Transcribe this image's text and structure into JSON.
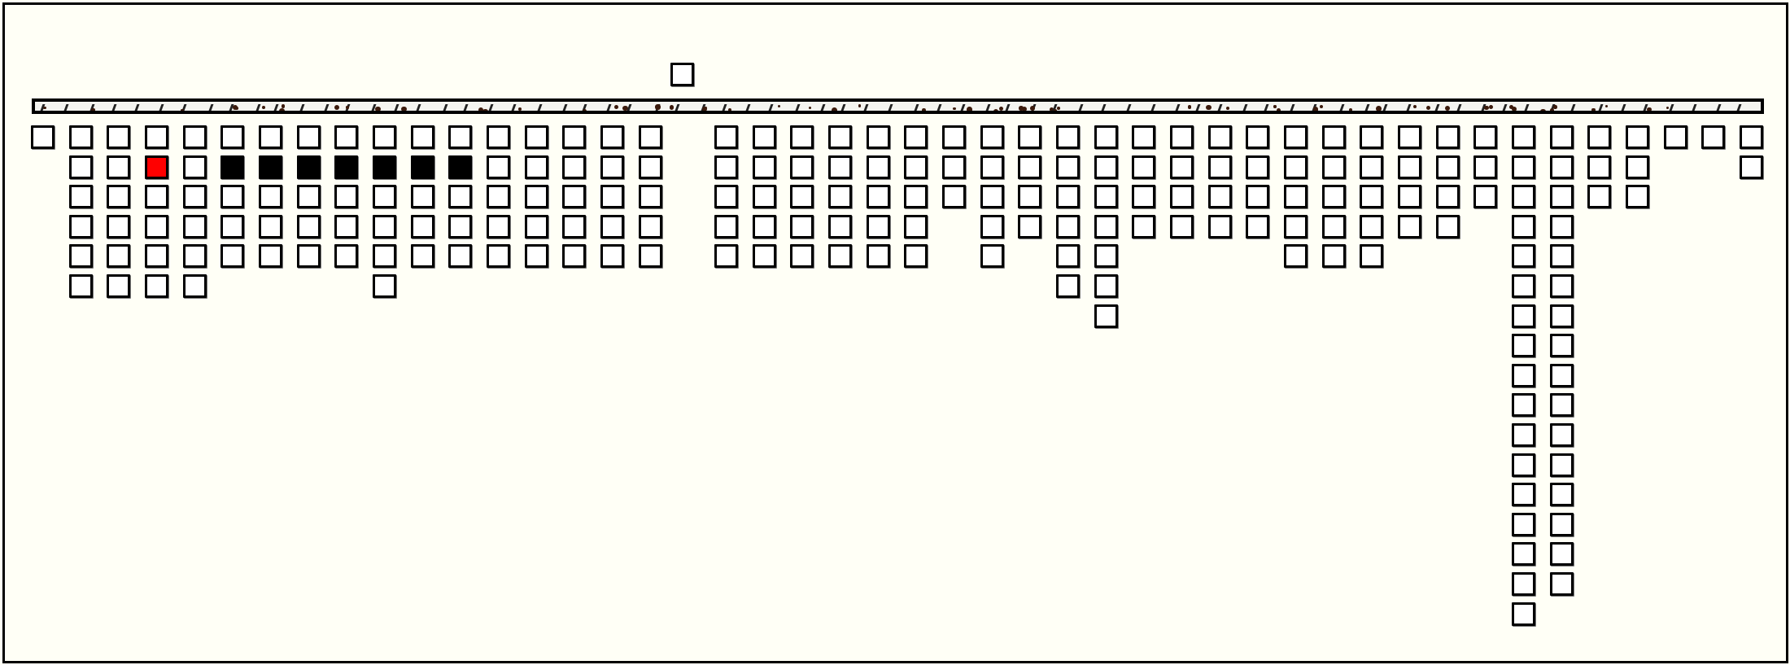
{
  "board": {
    "column_heights": [
      1,
      6,
      6,
      6,
      6,
      5,
      5,
      5,
      5,
      6,
      5,
      5,
      5,
      5,
      5,
      5,
      5,
      0,
      5,
      5,
      5,
      5,
      5,
      5,
      3,
      5,
      4,
      6,
      7,
      4,
      4,
      4,
      4,
      5,
      5,
      5,
      4,
      4,
      3,
      17,
      16,
      3,
      3,
      1,
      1,
      2
    ],
    "highlighted_cells": [
      {
        "col": 3,
        "row": 1,
        "state": "red"
      },
      {
        "col": 5,
        "row": 1,
        "state": "black"
      },
      {
        "col": 6,
        "row": 1,
        "state": "black"
      },
      {
        "col": 7,
        "row": 1,
        "state": "black"
      },
      {
        "col": 8,
        "row": 1,
        "state": "black"
      },
      {
        "col": 9,
        "row": 1,
        "state": "black"
      },
      {
        "col": 10,
        "row": 1,
        "state": "black"
      },
      {
        "col": 11,
        "row": 1,
        "state": "black"
      }
    ],
    "held_piece_column": 17
  },
  "colors": {
    "background": "#fffff6",
    "cell": "#ffffff",
    "red": "#ff0000",
    "black": "#000000",
    "speck": "#3b1a0c"
  }
}
